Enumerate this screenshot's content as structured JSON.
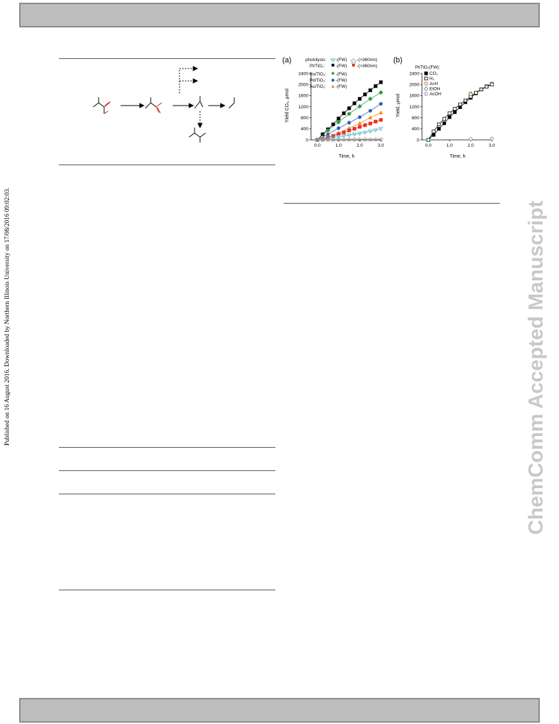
{
  "side_note": "Published on 16 August 2016. Downloaded by Northern Illinois University on 17/08/2016 09:02:03.",
  "watermark": "ChemComm Accepted Manuscript",
  "chart_data": [
    {
      "type": "line",
      "panel_label": "(a)",
      "xlabel": "Time, h",
      "ylabel": "Yield CO₂, μmol",
      "xlim": [
        -0.3,
        3.0
      ],
      "ylim": [
        0,
        2400
      ],
      "xticks": [
        "0.0",
        "1.0",
        "2.0",
        "3.0"
      ],
      "yticks": [
        "0",
        "400",
        "800",
        "1200",
        "1600",
        "2000",
        "2400"
      ],
      "legend": {
        "row1_label": "photolysis:",
        "row2_label": "Pt/TiO₂:",
        "row3_label": "Ru/TiO₂:",
        "row4_label": "Pd/TiO₂:",
        "row5_label": "Au/TiO₂:",
        "fw": "-(FW)",
        "uv": "-(>360nm)"
      },
      "series": [
        {
          "color": "#000000",
          "marker": "square",
          "x": [
            0,
            0.25,
            0.5,
            0.75,
            1.0,
            1.25,
            1.5,
            1.75,
            2.0,
            2.25,
            2.5,
            2.75,
            3.0
          ],
          "values": [
            0,
            200,
            380,
            560,
            770,
            960,
            1140,
            1320,
            1480,
            1640,
            1790,
            1940,
            2080
          ]
        },
        {
          "color": "#2e9e48",
          "marker": "diamond",
          "x": [
            0,
            0.5,
            1.0,
            1.5,
            2.0,
            2.5,
            3.0
          ],
          "values": [
            0,
            340,
            640,
            940,
            1210,
            1480,
            1710
          ]
        },
        {
          "color": "#2f5fb0",
          "marker": "circle",
          "x": [
            0,
            0.5,
            1.0,
            1.5,
            2.0,
            2.5,
            3.0
          ],
          "values": [
            0,
            200,
            420,
            620,
            820,
            1050,
            1300
          ]
        },
        {
          "color": "#f08c1e",
          "marker": "triangle",
          "x": [
            0,
            0.5,
            1.0,
            1.5,
            2.0,
            2.5,
            3.0
          ],
          "values": [
            0,
            110,
            250,
            420,
            600,
            800,
            980
          ]
        },
        {
          "color": "#e53224",
          "marker": "square",
          "x": [
            0,
            0.25,
            0.5,
            0.75,
            1.0,
            1.25,
            1.5,
            1.75,
            2.0,
            2.25,
            2.5,
            2.75,
            3.0
          ],
          "values": [
            0,
            30,
            80,
            140,
            210,
            270,
            340,
            400,
            470,
            530,
            590,
            660,
            720
          ]
        },
        {
          "color": "#4fb3c5",
          "marker": "triangle-down",
          "x": [
            0,
            0.25,
            0.5,
            0.75,
            1.0,
            1.25,
            1.5,
            1.75,
            2.0,
            2.25,
            2.5,
            2.75,
            3.0
          ],
          "values": [
            0,
            20,
            50,
            80,
            110,
            140,
            170,
            200,
            230,
            270,
            310,
            350,
            400
          ]
        },
        {
          "color": "#9a9a9a",
          "marker": "star",
          "x": [
            0,
            0.25,
            0.5,
            0.75,
            1.0,
            1.25,
            1.5,
            1.75,
            2.0,
            2.25,
            2.5,
            2.75,
            3.0
          ],
          "values": [
            0,
            5,
            10,
            10,
            12,
            12,
            14,
            14,
            15,
            15,
            16,
            16,
            18
          ]
        }
      ]
    },
    {
      "type": "line",
      "panel_label": "(b)",
      "xlabel": "Time, h",
      "ylabel": "Yield, μmol",
      "xlim": [
        -0.3,
        3.0
      ],
      "ylim": [
        0,
        2400
      ],
      "xticks": [
        "0.0",
        "1.0",
        "2.0",
        "3.0"
      ],
      "yticks": [
        "0",
        "400",
        "800",
        "1200",
        "1600",
        "2000",
        "2400"
      ],
      "legend_title": "Pt/TiO₂(FW):",
      "series": [
        {
          "name": "CO₂",
          "color": "#000000",
          "marker": "square-filled",
          "x": [
            0,
            0.25,
            0.5,
            0.75,
            1.0,
            1.25,
            1.5,
            1.75,
            2.0,
            2.25,
            2.5,
            2.75,
            3.0
          ],
          "values": [
            0,
            180,
            400,
            600,
            820,
            1000,
            1180,
            1360,
            1520,
            1680,
            1820,
            1930,
            2020
          ]
        },
        {
          "name": "H₂",
          "color": "#000000",
          "marker": "square-open",
          "x": [
            0,
            0.25,
            0.5,
            0.75,
            1.0,
            1.25,
            1.5,
            1.75,
            2.0,
            2.25,
            2.5,
            2.75,
            3.0
          ],
          "values": [
            0,
            300,
            560,
            760,
            960,
            1120,
            1280,
            1420,
            1560,
            1700,
            1820,
            1920,
            2000
          ]
        },
        {
          "name": "AcH",
          "color": "#e53224",
          "marker": "circle-open",
          "x": [
            2.0,
            3.0
          ],
          "values": [
            1680,
            2020
          ]
        },
        {
          "name": "EtOH",
          "color": "#2e9e48",
          "marker": "diamond-open",
          "x": [
            0,
            2.0,
            3.0
          ],
          "values": [
            0,
            1650,
            2000
          ]
        },
        {
          "name": "AcOH",
          "color": "#9b59b6",
          "marker": "circle-open",
          "x": [
            2.0,
            3.0
          ],
          "values": [
            30,
            40
          ]
        }
      ]
    }
  ]
}
